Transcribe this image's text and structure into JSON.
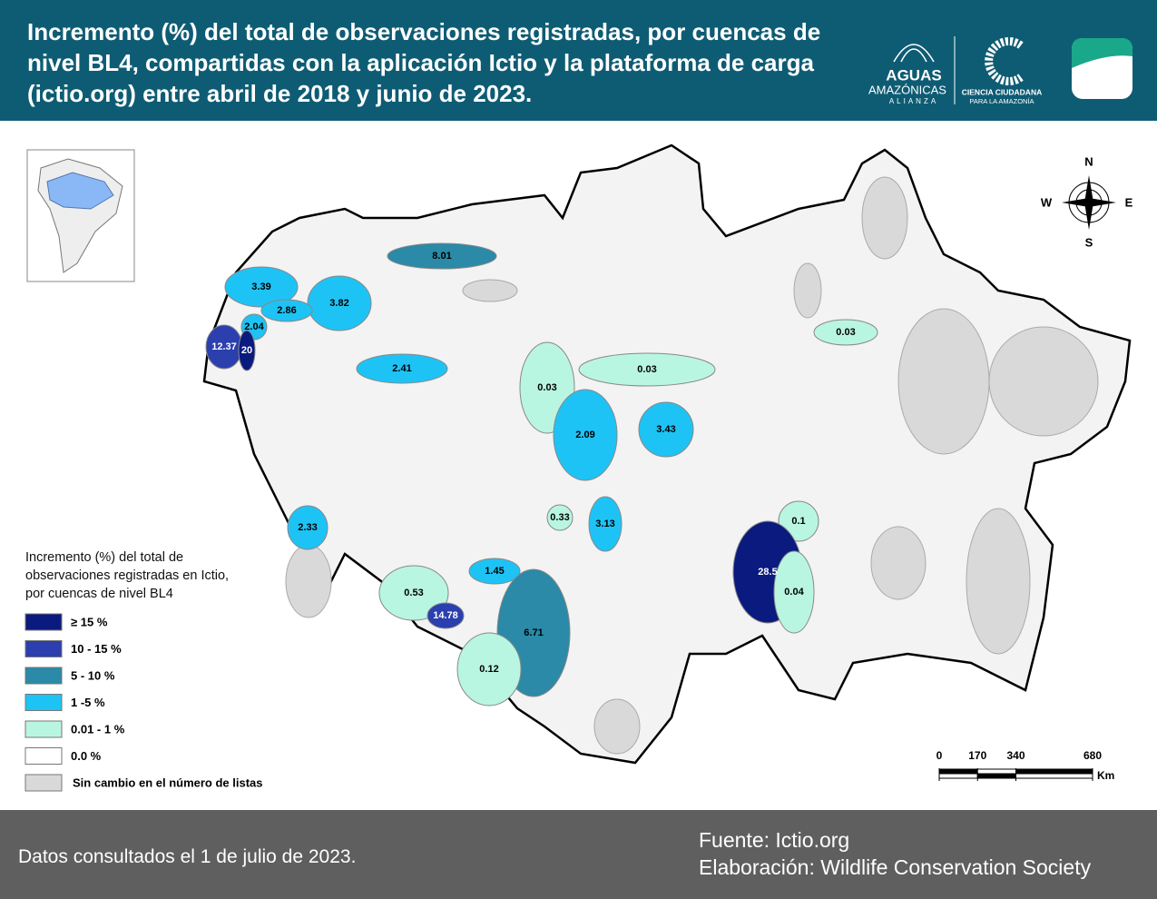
{
  "header": {
    "title": "Incremento (%) del total de observaciones registradas, por cuencas de nivel BL4, compartidas con la aplicación Ictio y la plataforma de carga (ictio.org) entre abril de 2018 y junio de 2023.",
    "logos": [
      "AGUAS",
      "AMAZÓNICAS",
      "ALIANZA",
      "CIENCIA CIUDADANA",
      "PARA LA AMAZONÍA"
    ]
  },
  "map": {
    "regions": [
      {
        "value": 8.01,
        "color": "#2a8aa8"
      },
      {
        "value": 3.39,
        "color": "#1ec3f5"
      },
      {
        "value": 3.82,
        "color": "#1ec3f5"
      },
      {
        "value": 2.86,
        "color": "#1ec3f5"
      },
      {
        "value": 2.04,
        "color": "#1ec3f5"
      },
      {
        "value": 12.37,
        "color": "#2b3fae"
      },
      {
        "value": 20,
        "color": "#0b1a7f"
      },
      {
        "value": 2.41,
        "color": "#1ec3f5"
      },
      {
        "value": 0.03,
        "color": "#b9f6e1"
      },
      {
        "value": 0.03,
        "color": "#b9f6e1"
      },
      {
        "value": 0.03,
        "color": "#b9f6e1"
      },
      {
        "value": 2.09,
        "color": "#1ec3f5"
      },
      {
        "value": 3.43,
        "color": "#1ec3f5"
      },
      {
        "value": 2.33,
        "color": "#1ec3f5"
      },
      {
        "value": 0.33,
        "color": "#b9f6e1"
      },
      {
        "value": 3.13,
        "color": "#1ec3f5"
      },
      {
        "value": 0.1,
        "color": "#b9f6e1"
      },
      {
        "value": 28.5,
        "color": "#0b1a7f"
      },
      {
        "value": 0.04,
        "color": "#b9f6e1"
      },
      {
        "value": 1.45,
        "color": "#1ec3f5"
      },
      {
        "value": 0.53,
        "color": "#b9f6e1"
      },
      {
        "value": 14.78,
        "color": "#2b3fae"
      },
      {
        "value": 6.71,
        "color": "#2a8aa8"
      },
      {
        "value": 0.12,
        "color": "#b9f6e1"
      }
    ],
    "compass": [
      "N",
      "E",
      "S",
      "W"
    ],
    "scale": {
      "ticks": [
        0,
        170,
        340,
        680
      ],
      "unit": "Km"
    }
  },
  "legend": {
    "title": "Incremento (%) del total de observaciones registradas en Ictio, por cuencas de nivel BL4",
    "items": [
      {
        "label": "≥ 15 %",
        "color": "#0b1a7f"
      },
      {
        "label": "10 - 15 %",
        "color": "#2b3fae"
      },
      {
        "label": "5 - 10 %",
        "color": "#2a8aa8"
      },
      {
        "label": "1 -5 %",
        "color": "#1ec3f5"
      },
      {
        "label": "0.01 - 1 %",
        "color": "#b9f6e1"
      },
      {
        "label": "0.0 %",
        "color": "#ffffff"
      },
      {
        "label": "Sin cambio en el número de listas",
        "color": "#d9d9d9"
      }
    ]
  },
  "footer": {
    "note": "Datos consultados el 1 de julio de 2023.",
    "source": "Fuente: Ictio.org",
    "credit": "Elaboración: Wildlife Conservation Society"
  }
}
